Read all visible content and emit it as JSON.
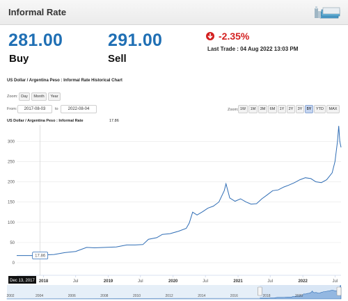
{
  "header": {
    "title": "Informal Rate",
    "icon": "money-stack-icon"
  },
  "quote": {
    "buy_value": "281.00",
    "buy_label": "Buy",
    "sell_value": "291.00",
    "sell_label": "Sell",
    "change": "-2.35%",
    "change_icon": "arrow-down-circle-icon",
    "change_color": "#d31f1f",
    "last_trade": "Last Trade : 04 Aug 2022 13:03 PM"
  },
  "chart_header": {
    "title": "US Dollar / Argentina Peso : Informal Rate Historical Chart",
    "zoom_label": "Zoom:",
    "zoom_buttons": [
      "Day",
      "Month",
      "Year"
    ],
    "from_label": "From:",
    "from_value": "2017-08-03",
    "to_label": "to",
    "to_value": "2022-08-04",
    "range_zoom_label": "Zoom:",
    "range_buttons": [
      "1W",
      "1M",
      "3M",
      "6M",
      "1Y",
      "2Y",
      "3Y",
      "5Y",
      "YTD",
      "MAX"
    ],
    "active_range": "5Y",
    "series_title": "US Dollar / Argentina Peso : Informal Rate",
    "series_value": "17.86"
  },
  "chart_data": {
    "type": "line",
    "series": [
      {
        "name": "US Dollar / Argentina Peso : Informal Rate",
        "color": "#2f6db5",
        "points": [
          [
            "2017-08-03",
            17.86
          ],
          [
            "2017-12-13",
            17.86
          ],
          [
            "2018-01-15",
            19.5
          ],
          [
            "2018-03-01",
            20.5
          ],
          [
            "2018-05-01",
            25
          ],
          [
            "2018-07-01",
            28
          ],
          [
            "2018-09-01",
            38
          ],
          [
            "2018-10-15",
            37
          ],
          [
            "2018-12-15",
            38
          ],
          [
            "2019-02-15",
            39
          ],
          [
            "2019-04-15",
            44
          ],
          [
            "2019-06-01",
            44
          ],
          [
            "2019-07-15",
            45
          ],
          [
            "2019-08-15",
            58
          ],
          [
            "2019-10-01",
            62
          ],
          [
            "2019-11-01",
            70
          ],
          [
            "2019-12-15",
            72
          ],
          [
            "2020-02-01",
            78
          ],
          [
            "2020-03-15",
            85
          ],
          [
            "2020-04-01",
            98
          ],
          [
            "2020-04-20",
            125
          ],
          [
            "2020-05-15",
            118
          ],
          [
            "2020-06-15",
            126
          ],
          [
            "2020-07-15",
            135
          ],
          [
            "2020-08-15",
            140
          ],
          [
            "2020-09-15",
            150
          ],
          [
            "2020-10-15",
            178
          ],
          [
            "2020-10-25",
            195
          ],
          [
            "2020-11-15",
            160
          ],
          [
            "2020-12-15",
            152
          ],
          [
            "2021-01-15",
            158
          ],
          [
            "2021-02-15",
            150
          ],
          [
            "2021-03-15",
            145
          ],
          [
            "2021-04-15",
            146
          ],
          [
            "2021-05-15",
            158
          ],
          [
            "2021-06-15",
            168
          ],
          [
            "2021-07-15",
            178
          ],
          [
            "2021-08-15",
            180
          ],
          [
            "2021-09-15",
            187
          ],
          [
            "2021-10-15",
            192
          ],
          [
            "2021-11-15",
            198
          ],
          [
            "2021-12-15",
            205
          ],
          [
            "2022-01-15",
            210
          ],
          [
            "2022-02-15",
            208
          ],
          [
            "2022-03-15",
            200
          ],
          [
            "2022-04-15",
            198
          ],
          [
            "2022-05-15",
            205
          ],
          [
            "2022-06-15",
            222
          ],
          [
            "2022-07-01",
            250
          ],
          [
            "2022-07-15",
            300
          ],
          [
            "2022-07-22",
            338
          ],
          [
            "2022-07-28",
            300
          ],
          [
            "2022-08-04",
            285
          ]
        ]
      }
    ],
    "x_ticks": [
      "2018",
      "Jul",
      "2019",
      "Jul",
      "2020",
      "Jul",
      "2021",
      "Jul",
      "2022",
      "Jul"
    ],
    "y_ticks": [
      0,
      50,
      100,
      150,
      200,
      250,
      300
    ],
    "ylim": [
      0,
      340
    ],
    "grid": true,
    "crosshair": {
      "date_label": "Dec 13, 2017",
      "value_label": "17.86"
    },
    "navigator_ticks": [
      "2002",
      "2004",
      "2006",
      "2008",
      "2010",
      "2012",
      "2014",
      "2016",
      "2018",
      "2020"
    ]
  }
}
